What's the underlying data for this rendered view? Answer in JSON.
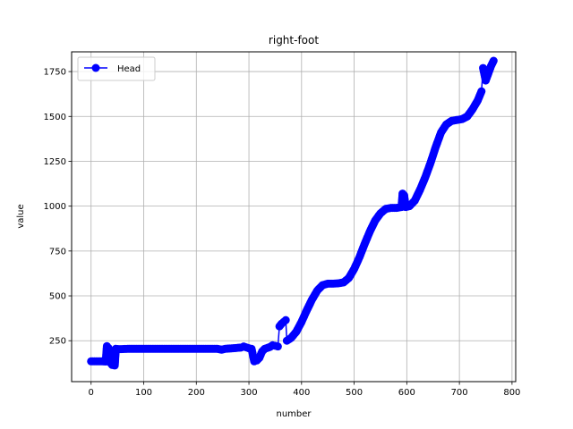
{
  "chart_data": {
    "type": "line",
    "title": "right-foot",
    "xlabel": "number",
    "ylabel": "value",
    "xlim": [
      -37,
      807
    ],
    "ylim": [
      22,
      1860
    ],
    "xticks": [
      0,
      100,
      200,
      300,
      400,
      500,
      600,
      700,
      800
    ],
    "yticks": [
      250,
      500,
      750,
      1000,
      1250,
      1500,
      1750
    ],
    "grid": true,
    "legend_position": "upper-left",
    "series": [
      {
        "name": "Head",
        "color": "#0000ff",
        "marker": "circle",
        "points": [
          [
            0,
            135
          ],
          [
            10,
            135
          ],
          [
            20,
            135
          ],
          [
            28,
            134
          ],
          [
            30,
            220
          ],
          [
            33,
            210
          ],
          [
            36,
            130
          ],
          [
            40,
            115
          ],
          [
            45,
            112
          ],
          [
            47,
            205
          ],
          [
            55,
            203
          ],
          [
            70,
            205
          ],
          [
            100,
            205
          ],
          [
            150,
            205
          ],
          [
            200,
            205
          ],
          [
            240,
            205
          ],
          [
            248,
            200
          ],
          [
            255,
            205
          ],
          [
            270,
            208
          ],
          [
            285,
            212
          ],
          [
            290,
            218
          ],
          [
            300,
            208
          ],
          [
            305,
            205
          ],
          [
            310,
            135
          ],
          [
            315,
            140
          ],
          [
            320,
            155
          ],
          [
            325,
            190
          ],
          [
            330,
            205
          ],
          [
            340,
            215
          ],
          [
            345,
            225
          ],
          [
            350,
            222
          ],
          [
            355,
            218
          ],
          [
            358,
            330
          ],
          [
            362,
            345
          ],
          [
            366,
            355
          ],
          [
            370,
            365
          ],
          [
            372,
            250
          ],
          [
            380,
            265
          ],
          [
            390,
            300
          ],
          [
            400,
            355
          ],
          [
            410,
            420
          ],
          [
            420,
            480
          ],
          [
            430,
            530
          ],
          [
            440,
            560
          ],
          [
            450,
            568
          ],
          [
            460,
            568
          ],
          [
            470,
            570
          ],
          [
            480,
            575
          ],
          [
            490,
            600
          ],
          [
            500,
            650
          ],
          [
            510,
            715
          ],
          [
            520,
            790
          ],
          [
            530,
            860
          ],
          [
            540,
            920
          ],
          [
            550,
            960
          ],
          [
            560,
            985
          ],
          [
            570,
            990
          ],
          [
            580,
            990
          ],
          [
            590,
            995
          ],
          [
            592,
            1070
          ],
          [
            595,
            1060
          ],
          [
            598,
            995
          ],
          [
            605,
            1000
          ],
          [
            615,
            1030
          ],
          [
            625,
            1090
          ],
          [
            635,
            1160
          ],
          [
            645,
            1240
          ],
          [
            655,
            1330
          ],
          [
            665,
            1410
          ],
          [
            675,
            1455
          ],
          [
            685,
            1475
          ],
          [
            695,
            1480
          ],
          [
            705,
            1485
          ],
          [
            715,
            1500
          ],
          [
            725,
            1540
          ],
          [
            735,
            1590
          ],
          [
            742,
            1640
          ],
          [
            745,
            1770
          ],
          [
            750,
            1700
          ],
          [
            755,
            1740
          ],
          [
            760,
            1780
          ],
          [
            765,
            1810
          ]
        ]
      }
    ]
  }
}
